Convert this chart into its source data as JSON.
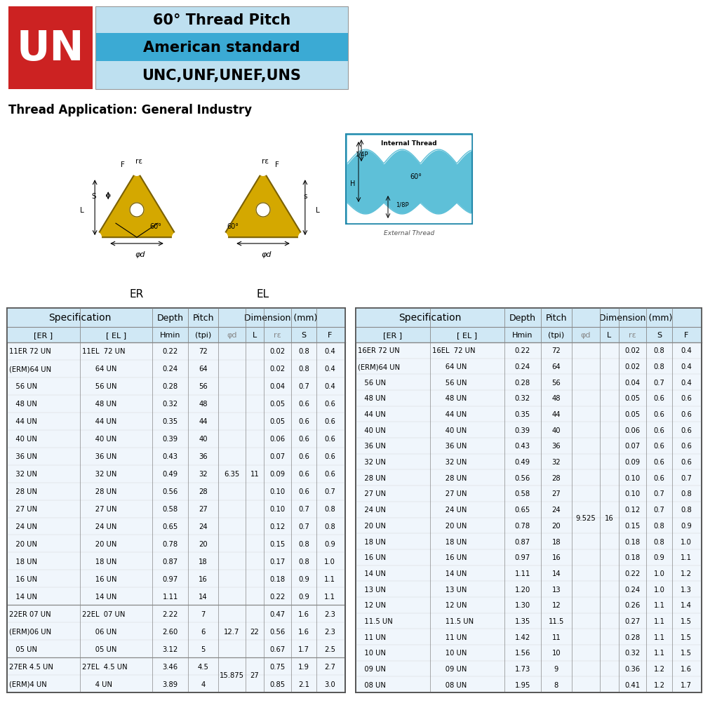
{
  "title_red_bg": "#CC2222",
  "title_blue_bg_light": "#BEE0F0",
  "title_blue_bg_medium": "#3BAAD4",
  "un_text": "UN",
  "line1": "60° Thread Pitch",
  "line2": "American standard",
  "line3": "UNC,UNF,UNEF,UNS",
  "app_text": "Thread Application: General Industry",
  "left_table": {
    "spec_header": "Specification",
    "col_headers": [
      "[ER ]",
      "[ EL ]",
      "Hmin",
      "(tpi)",
      "φd",
      "L",
      "rε",
      "S",
      "F"
    ],
    "group1_er": [
      "11ER 72 UN",
      "(ERM)64 UN",
      "   56 UN",
      "   48 UN",
      "   44 UN",
      "   40 UN",
      "   36 UN",
      "   32 UN",
      "   28 UN",
      "   27 UN",
      "   24 UN",
      "   20 UN",
      "   18 UN",
      "   16 UN",
      "   14 UN"
    ],
    "group1_el": [
      "11EL  72 UN",
      "      64 UN",
      "      56 UN",
      "      48 UN",
      "      44 UN",
      "      40 UN",
      "      36 UN",
      "      32 UN",
      "      28 UN",
      "      27 UN",
      "      24 UN",
      "      20 UN",
      "      18 UN",
      "      16 UN",
      "      14 UN"
    ],
    "group1_hmin": [
      "0.22",
      "0.24",
      "0.28",
      "0.32",
      "0.35",
      "0.39",
      "0.43",
      "0.49",
      "0.56",
      "0.58",
      "0.65",
      "0.78",
      "0.87",
      "0.97",
      "1.11"
    ],
    "group1_tpi": [
      "72",
      "64",
      "56",
      "48",
      "44",
      "40",
      "36",
      "32",
      "28",
      "27",
      "24",
      "20",
      "18",
      "16",
      "14"
    ],
    "group1_phi": "6.35",
    "group1_L": "11",
    "group1_re": [
      "0.02",
      "0.02",
      "0.04",
      "0.05",
      "0.05",
      "0.06",
      "0.07",
      "0.09",
      "0.10",
      "0.10",
      "0.12",
      "0.15",
      "0.17",
      "0.18",
      "0.22"
    ],
    "group1_S": [
      "0.8",
      "0.8",
      "0.7",
      "0.6",
      "0.6",
      "0.6",
      "0.6",
      "0.6",
      "0.6",
      "0.7",
      "0.7",
      "0.8",
      "0.8",
      "0.9",
      "0.9"
    ],
    "group1_F": [
      "0.4",
      "0.4",
      "0.4",
      "0.6",
      "0.6",
      "0.6",
      "0.6",
      "0.6",
      "0.7",
      "0.8",
      "0.8",
      "0.9",
      "1.0",
      "1.1",
      "1.1"
    ],
    "group2_er": [
      "22ER 07 UN",
      "(ERM)06 UN",
      "   05 UN"
    ],
    "group2_el": [
      "22EL  07 UN",
      "      06 UN",
      "      05 UN"
    ],
    "group2_hmin": [
      "2.22",
      "2.60",
      "3.12"
    ],
    "group2_tpi": [
      "7",
      "6",
      "5"
    ],
    "group2_phi": "12.7",
    "group2_L": "22",
    "group2_re": [
      "0.47",
      "0.56",
      "0.67"
    ],
    "group2_S": [
      "1.6",
      "1.6",
      "1.7"
    ],
    "group2_F": [
      "2.3",
      "2.3",
      "2.5"
    ],
    "group3_er": [
      "27ER 4.5 UN",
      "(ERM)4 UN"
    ],
    "group3_el": [
      "27EL  4.5 UN",
      "      4 UN"
    ],
    "group3_hmin": [
      "3.46",
      "3.89"
    ],
    "group3_tpi": [
      "4.5",
      "4"
    ],
    "group3_phi": "15.875",
    "group3_L": "27",
    "group3_re": [
      "0.75",
      "0.85"
    ],
    "group3_S": [
      "1.9",
      "2.1"
    ],
    "group3_F": [
      "2.7",
      "3.0"
    ]
  },
  "right_table": {
    "spec_header": "Specification",
    "col_headers": [
      "[ER ]",
      "[ EL ]",
      "Hmin",
      "(tpi)",
      "φd",
      "L",
      "rε",
      "S",
      "F"
    ],
    "group1_er": [
      "16ER 72 UN",
      "(ERM)64 UN",
      "   56 UN",
      "   48 UN",
      "   44 UN",
      "   40 UN",
      "   36 UN",
      "   32 UN",
      "   28 UN",
      "   27 UN",
      "   24 UN",
      "   20 UN",
      "   18 UN",
      "   16 UN",
      "   14 UN",
      "   13 UN",
      "   12 UN",
      "   11.5 UN",
      "   11 UN",
      "   10 UN",
      "   09 UN",
      "   08 UN"
    ],
    "group1_el": [
      "16EL  72 UN",
      "      64 UN",
      "      56 UN",
      "      48 UN",
      "      44 UN",
      "      40 UN",
      "      36 UN",
      "      32 UN",
      "      28 UN",
      "      27 UN",
      "      24 UN",
      "      20 UN",
      "      18 UN",
      "      16 UN",
      "      14 UN",
      "      13 UN",
      "      12 UN",
      "      11.5 UN",
      "      11 UN",
      "      10 UN",
      "      09 UN",
      "      08 UN"
    ],
    "group1_hmin": [
      "0.22",
      "0.24",
      "0.28",
      "0.32",
      "0.35",
      "0.39",
      "0.43",
      "0.49",
      "0.56",
      "0.58",
      "0.65",
      "0.78",
      "0.87",
      "0.97",
      "1.11",
      "1.20",
      "1.30",
      "1.35",
      "1.42",
      "1.56",
      "1.73",
      "1.95"
    ],
    "group1_tpi": [
      "72",
      "64",
      "56",
      "48",
      "44",
      "40",
      "36",
      "32",
      "28",
      "27",
      "24",
      "20",
      "18",
      "16",
      "14",
      "13",
      "12",
      "11.5",
      "11",
      "10",
      "9",
      "8"
    ],
    "group1_phi": "9.525",
    "group1_L": "16",
    "group1_re": [
      "0.02",
      "0.02",
      "0.04",
      "0.05",
      "0.05",
      "0.06",
      "0.07",
      "0.09",
      "0.10",
      "0.10",
      "0.12",
      "0.15",
      "0.18",
      "0.18",
      "0.22",
      "0.24",
      "0.26",
      "0.27",
      "0.28",
      "0.32",
      "0.36",
      "0.41"
    ],
    "group1_S": [
      "0.8",
      "0.8",
      "0.7",
      "0.6",
      "0.6",
      "0.6",
      "0.6",
      "0.6",
      "0.6",
      "0.7",
      "0.7",
      "0.8",
      "0.8",
      "0.9",
      "1.0",
      "1.0",
      "1.1",
      "1.1",
      "1.1",
      "1.1",
      "1.2",
      "1.2"
    ],
    "group1_F": [
      "0.4",
      "0.4",
      "0.4",
      "0.6",
      "0.6",
      "0.6",
      "0.6",
      "0.6",
      "0.7",
      "0.8",
      "0.8",
      "0.9",
      "1.0",
      "1.1",
      "1.2",
      "1.3",
      "1.4",
      "1.5",
      "1.5",
      "1.5",
      "1.6",
      "1.7"
    ]
  }
}
